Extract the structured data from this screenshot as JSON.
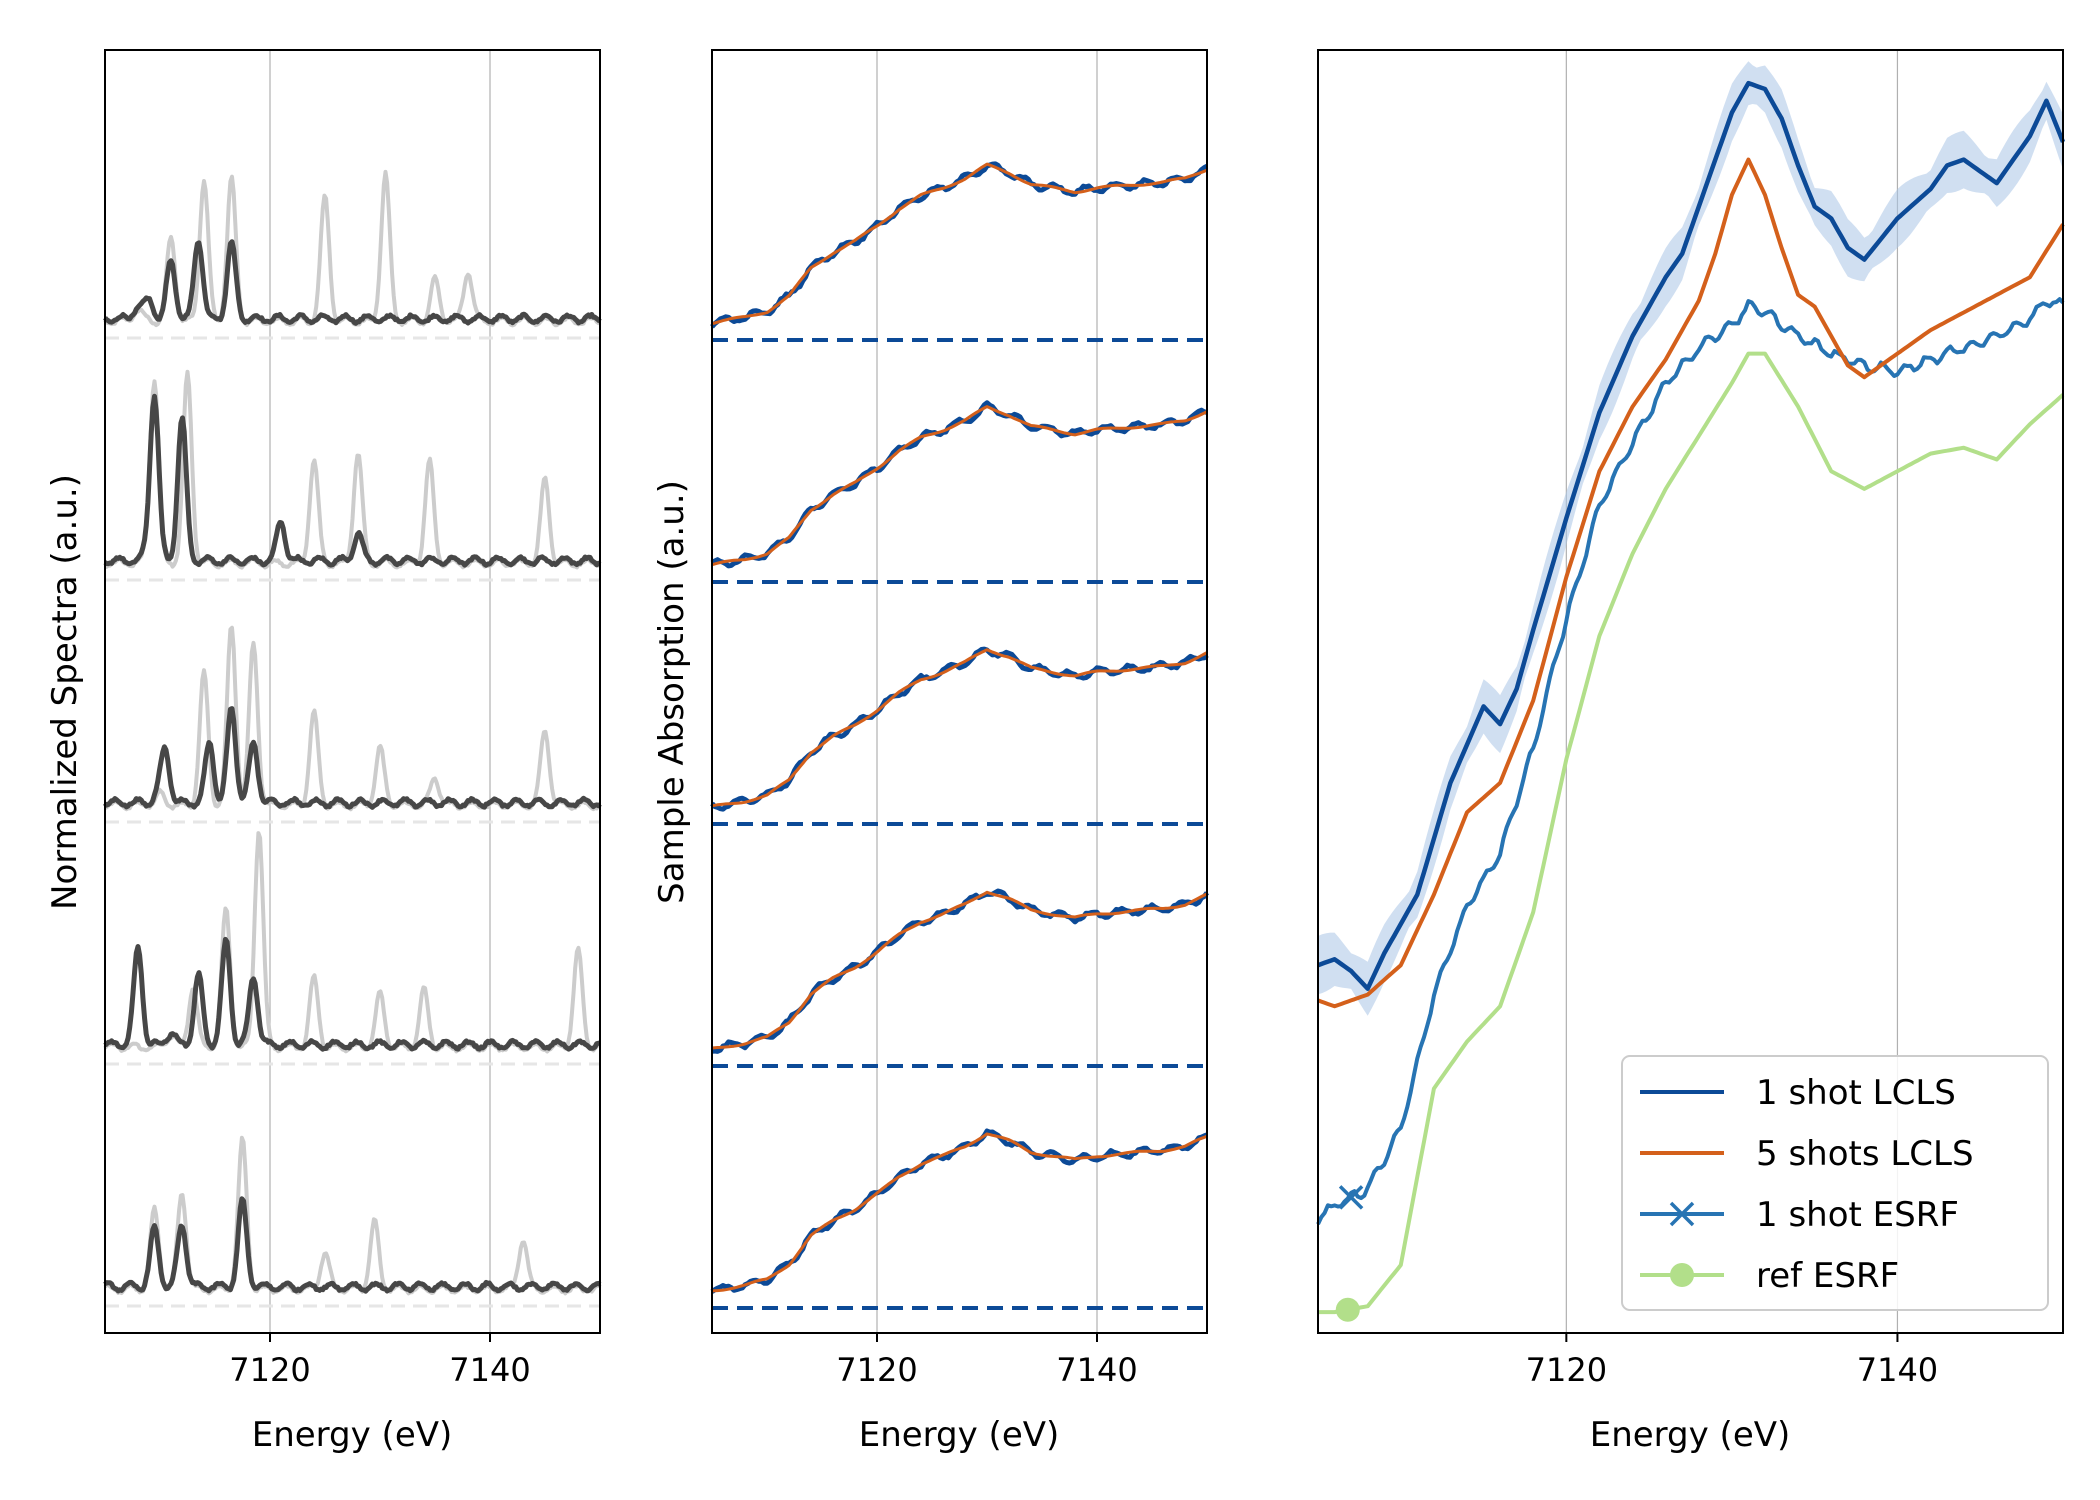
{
  "colors": {
    "dark_gray": "#474747",
    "light_gray": "#cccccc",
    "baseline_gray": "#e6e6e6",
    "blue_dark": "#0c4a97",
    "orange": "#d4601b",
    "blue": "#2774b3",
    "green": "#b2df8a",
    "band": "#a9c4e6",
    "grid": "#b0b0b0"
  },
  "chart_data": [
    {
      "type": "line",
      "panel": "left",
      "xlabel": "Energy (eV)",
      "ylabel": "Normalized Spectra (a.u.)",
      "xlim": [
        7105,
        7150
      ],
      "xticks": [
        "7120",
        "7140"
      ],
      "grid": "vertical at ticks",
      "traces": 5,
      "series": [
        {
          "role": "single-shot spectrum",
          "color": "dark_gray",
          "stack_peaks": [
            [
              [
                7109,
                0.08
              ],
              [
                7111,
                0.25
              ],
              [
                7113.5,
                0.35
              ],
              [
                7116.5,
                0.33
              ]
            ],
            [
              [
                7109.5,
                0.7
              ],
              [
                7112,
                0.62
              ],
              [
                7121,
                0.17
              ],
              [
                7128,
                0.12
              ]
            ],
            [
              [
                7110.5,
                0.21
              ],
              [
                7114.5,
                0.26
              ],
              [
                7116.5,
                0.41
              ],
              [
                7118.5,
                0.26
              ]
            ],
            [
              [
                7108,
                0.42
              ],
              [
                7113.5,
                0.3
              ],
              [
                7116,
                0.45
              ],
              [
                7118.5,
                0.3
              ]
            ],
            [
              [
                7109.5,
                0.25
              ],
              [
                7112,
                0.22
              ],
              [
                7117.5,
                0.37
              ]
            ]
          ]
        },
        {
          "role": "reference spectrum",
          "color": "light_gray",
          "stack_peaks": [
            [
              [
                7111,
                0.36
              ],
              [
                7114,
                0.62
              ],
              [
                7116.5,
                0.62
              ],
              [
                7125,
                0.54
              ],
              [
                7130.5,
                0.64
              ],
              [
                7135,
                0.18
              ],
              [
                7138,
                0.22
              ]
            ],
            [
              [
                7109.5,
                0.78
              ],
              [
                7112.5,
                0.82
              ],
              [
                7124,
                0.45
              ],
              [
                7128,
                0.48
              ],
              [
                7134.5,
                0.44
              ],
              [
                7145,
                0.36
              ]
            ],
            [
              [
                7114,
                0.57
              ],
              [
                7116.5,
                0.78
              ],
              [
                7118.5,
                0.7
              ],
              [
                7124,
                0.4
              ],
              [
                7130,
                0.25
              ],
              [
                7135,
                0.12
              ],
              [
                7145,
                0.33
              ]
            ],
            [
              [
                7113,
                0.26
              ],
              [
                7116,
                0.6
              ],
              [
                7119,
                0.95
              ],
              [
                7124,
                0.3
              ],
              [
                7130,
                0.23
              ],
              [
                7134,
                0.25
              ],
              [
                7148,
                0.42
              ]
            ],
            [
              [
                7109.5,
                0.34
              ],
              [
                7112,
                0.37
              ],
              [
                7117.5,
                0.65
              ],
              [
                7125,
                0.16
              ],
              [
                7129.5,
                0.29
              ],
              [
                7143,
                0.22
              ]
            ]
          ]
        }
      ]
    },
    {
      "type": "line",
      "panel": "middle",
      "xlabel": "Energy (eV)",
      "ylabel": "Sample Absorption (a.u.)",
      "xlim": [
        7105,
        7150
      ],
      "xticks": [
        "7120",
        "7140"
      ],
      "grid": "vertical at ticks",
      "traces": 5,
      "series": [
        {
          "role": "measured absorption",
          "color": "blue_dark"
        },
        {
          "role": "fit",
          "color": "orange"
        },
        {
          "role": "zero baseline",
          "color": "blue_dark",
          "style": "dashed"
        }
      ],
      "x": [
        7105,
        7108,
        7110,
        7112,
        7114,
        7116,
        7118,
        7120,
        7122,
        7124,
        7126,
        7128,
        7130,
        7132,
        7134,
        7136,
        7138,
        7140,
        7142,
        7144,
        7146,
        7148,
        7150
      ],
      "y": [
        0.09,
        0.12,
        0.15,
        0.23,
        0.38,
        0.46,
        0.52,
        0.6,
        0.69,
        0.76,
        0.8,
        0.85,
        0.92,
        0.88,
        0.82,
        0.8,
        0.78,
        0.8,
        0.81,
        0.82,
        0.83,
        0.85,
        0.9
      ]
    },
    {
      "type": "line",
      "panel": "right",
      "xlabel": "Energy (eV)",
      "xlim": [
        7105,
        7150
      ],
      "xticks": [
        "7120",
        "7140"
      ],
      "grid": "vertical at ticks",
      "legend": "bottom-right",
      "series": [
        {
          "name": "1 shot LCLS",
          "color": "blue_dark",
          "band": "uncertainty band",
          "x": [
            7105,
            7106,
            7107,
            7108,
            7109,
            7111,
            7113,
            7115,
            7116,
            7117,
            7118,
            7120,
            7122,
            7124,
            7126,
            7127,
            7128,
            7129,
            7130,
            7131,
            7132,
            7133,
            7134,
            7135,
            7136,
            7137,
            7138,
            7140,
            7142,
            7143,
            7144,
            7146,
            7148,
            7149,
            7150
          ],
          "y": [
            0.43,
            0.44,
            0.42,
            0.39,
            0.45,
            0.55,
            0.74,
            0.87,
            0.84,
            0.9,
            1.0,
            1.19,
            1.37,
            1.5,
            1.6,
            1.64,
            1.72,
            1.8,
            1.88,
            1.93,
            1.92,
            1.87,
            1.79,
            1.72,
            1.7,
            1.65,
            1.63,
            1.7,
            1.75,
            1.79,
            1.8,
            1.76,
            1.84,
            1.9,
            1.83
          ]
        },
        {
          "name": "5 shots LCLS",
          "color": "orange",
          "x": [
            7105,
            7106,
            7108,
            7110,
            7112,
            7114,
            7116,
            7118,
            7120,
            7122,
            7124,
            7126,
            7128,
            7129,
            7130,
            7131,
            7132,
            7133,
            7134,
            7135,
            7136,
            7137,
            7138,
            7140,
            7142,
            7144,
            7146,
            7148,
            7150
          ],
          "y": [
            0.37,
            0.36,
            0.38,
            0.43,
            0.55,
            0.69,
            0.74,
            0.88,
            1.09,
            1.27,
            1.38,
            1.46,
            1.56,
            1.64,
            1.74,
            1.8,
            1.74,
            1.65,
            1.57,
            1.55,
            1.5,
            1.45,
            1.43,
            1.47,
            1.51,
            1.54,
            1.57,
            1.6,
            1.69
          ]
        },
        {
          "name": "1 shot ESRF",
          "color": "blue",
          "marker": "x",
          "x": [
            7105,
            7106,
            7108,
            7110,
            7112,
            7114,
            7116,
            7118,
            7120,
            7122,
            7124,
            7126,
            7128,
            7130,
            7131,
            7132,
            7133,
            7134,
            7136,
            7138,
            7140,
            7142,
            7144,
            7146,
            7148,
            7149,
            7150
          ],
          "y": [
            0.0,
            0.02,
            0.05,
            0.15,
            0.38,
            0.53,
            0.62,
            0.8,
            1.02,
            1.21,
            1.32,
            1.42,
            1.48,
            1.52,
            1.55,
            1.54,
            1.52,
            1.5,
            1.47,
            1.45,
            1.44,
            1.46,
            1.48,
            1.5,
            1.53,
            1.56,
            1.55
          ]
        },
        {
          "name": "ref ESRF",
          "color": "green",
          "marker": "o",
          "x": [
            7105,
            7106,
            7108,
            7110,
            7112,
            7114,
            7116,
            7118,
            7120,
            7122,
            7124,
            7126,
            7128,
            7130,
            7131,
            7132,
            7134,
            7136,
            7138,
            7140,
            7142,
            7144,
            7146,
            7148,
            7150
          ],
          "y": [
            -0.16,
            -0.16,
            -0.15,
            -0.08,
            0.22,
            0.3,
            0.36,
            0.52,
            0.78,
            0.99,
            1.13,
            1.24,
            1.33,
            1.42,
            1.47,
            1.47,
            1.38,
            1.27,
            1.24,
            1.27,
            1.3,
            1.31,
            1.29,
            1.35,
            1.4
          ]
        }
      ]
    }
  ]
}
